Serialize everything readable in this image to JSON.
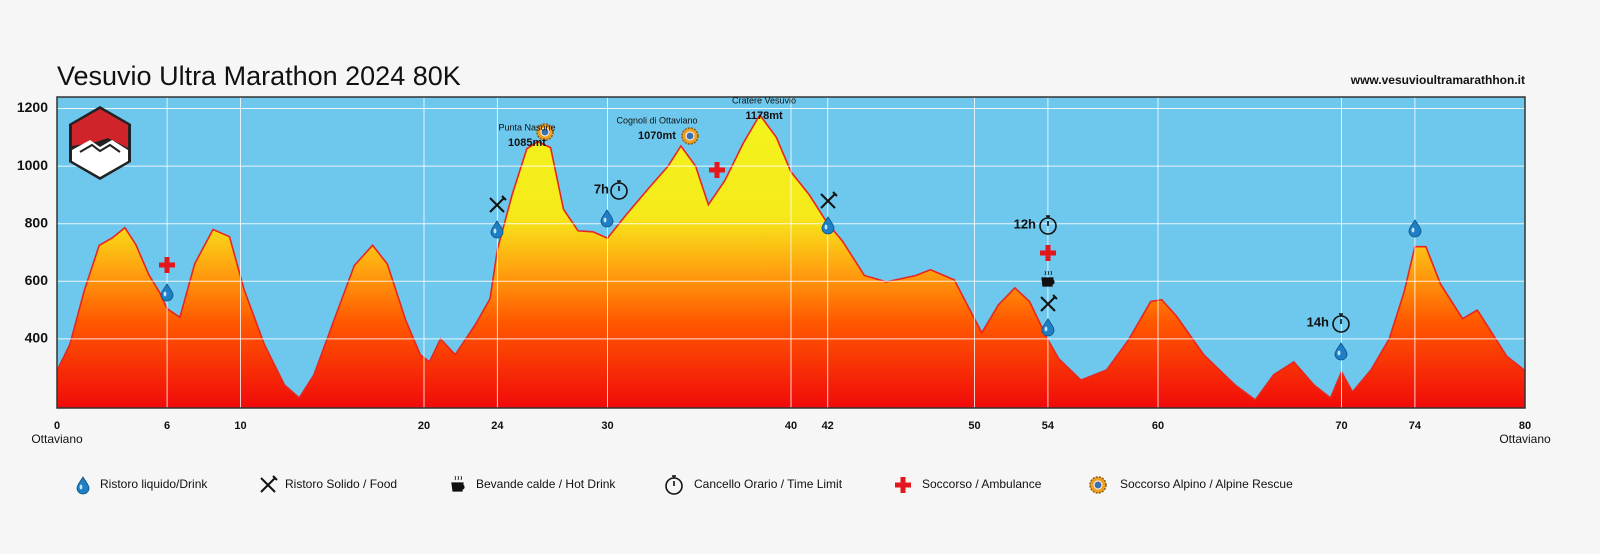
{
  "header": {
    "title": "Vesuvio Ultra Marathon 2024 80K",
    "website": "www.vesuvioultramarathhon.it"
  },
  "chart_data": {
    "type": "area",
    "x": [
      0,
      0.7,
      1.5,
      2.3,
      3,
      3.7,
      4.3,
      5,
      5.6,
      6,
      6.7,
      7.5,
      8.5,
      9.4,
      10.2,
      11.3,
      12.4,
      13.2,
      14,
      15.1,
      16.2,
      17.2,
      18,
      19,
      19.8,
      20.3,
      20.9,
      21.7,
      22.8,
      23.6,
      24,
      24.8,
      25.6,
      26.2,
      26.9,
      27.6,
      28.4,
      29.2,
      30,
      31,
      32.2,
      33.3,
      34,
      34.8,
      35.5,
      36.4,
      37.4,
      38.3,
      39.2,
      40,
      41,
      42,
      42.8,
      44,
      45.2,
      46.8,
      47.6,
      48.9,
      50,
      50.4,
      51.3,
      52.2,
      53,
      54,
      54.6,
      55.8,
      57.2,
      58.4,
      59.6,
      60.2,
      61,
      62.5,
      64.2,
      65.3,
      66.3,
      67.4,
      68.5,
      69.4,
      70,
      70.6,
      71.6,
      72.6,
      73.4,
      74,
      74.6,
      75.4,
      76.6,
      77.4,
      78.2,
      79,
      80
    ],
    "values": [
      290,
      380,
      570,
      725,
      750,
      786,
      727,
      623,
      560,
      505,
      475,
      660,
      780,
      755,
      570,
      380,
      240,
      195,
      275,
      466,
      655,
      725,
      660,
      466,
      345,
      320,
      400,
      345,
      450,
      540,
      710,
      900,
      1060,
      1085,
      1064,
      850,
      775,
      772,
      750,
      830,
      920,
      1000,
      1070,
      1000,
      866,
      950,
      1080,
      1178,
      1100,
      980,
      900,
      800,
      740,
      620,
      598,
      620,
      640,
      605,
      470,
      421,
      518,
      577,
      530,
      397,
      330,
      257,
      292,
      397,
      530,
      536,
      480,
      344,
      240,
      188,
      275,
      320,
      240,
      195,
      285,
      216,
      292,
      400,
      560,
      720,
      720,
      590,
      470,
      500,
      420,
      340,
      290
    ],
    "color": "#e8261f",
    "xlim": [
      0,
      80
    ],
    "ylim": [
      160,
      1240
    ],
    "xticks": [
      0,
      6,
      10,
      20,
      24,
      30,
      40,
      42,
      50,
      54,
      60,
      70,
      74,
      80
    ],
    "yticks": [
      400,
      600,
      800,
      1000,
      1200
    ],
    "grid": true,
    "start_label": "Ottaviano",
    "end_label": "Ottaviano",
    "annotations": [
      {
        "text": "Punta Nasone",
        "elevation": "1085mt"
      },
      {
        "text": "Cognoli di Ottaviano",
        "elevation": "1070mt"
      },
      {
        "text": "Cratere Vesuvio",
        "elevation": "1178mt"
      }
    ],
    "time_limits": [
      "7h",
      "12h",
      "14h"
    ]
  },
  "legend": [
    "Ristoro liquido/Drink",
    "Ristoro Solido / Food",
    "Bevande calde / Hot Drink",
    "Cancello Orario / Time Limit",
    "Soccorso / Ambulance",
    "Soccorso Alpino / Alpine Rescue"
  ]
}
